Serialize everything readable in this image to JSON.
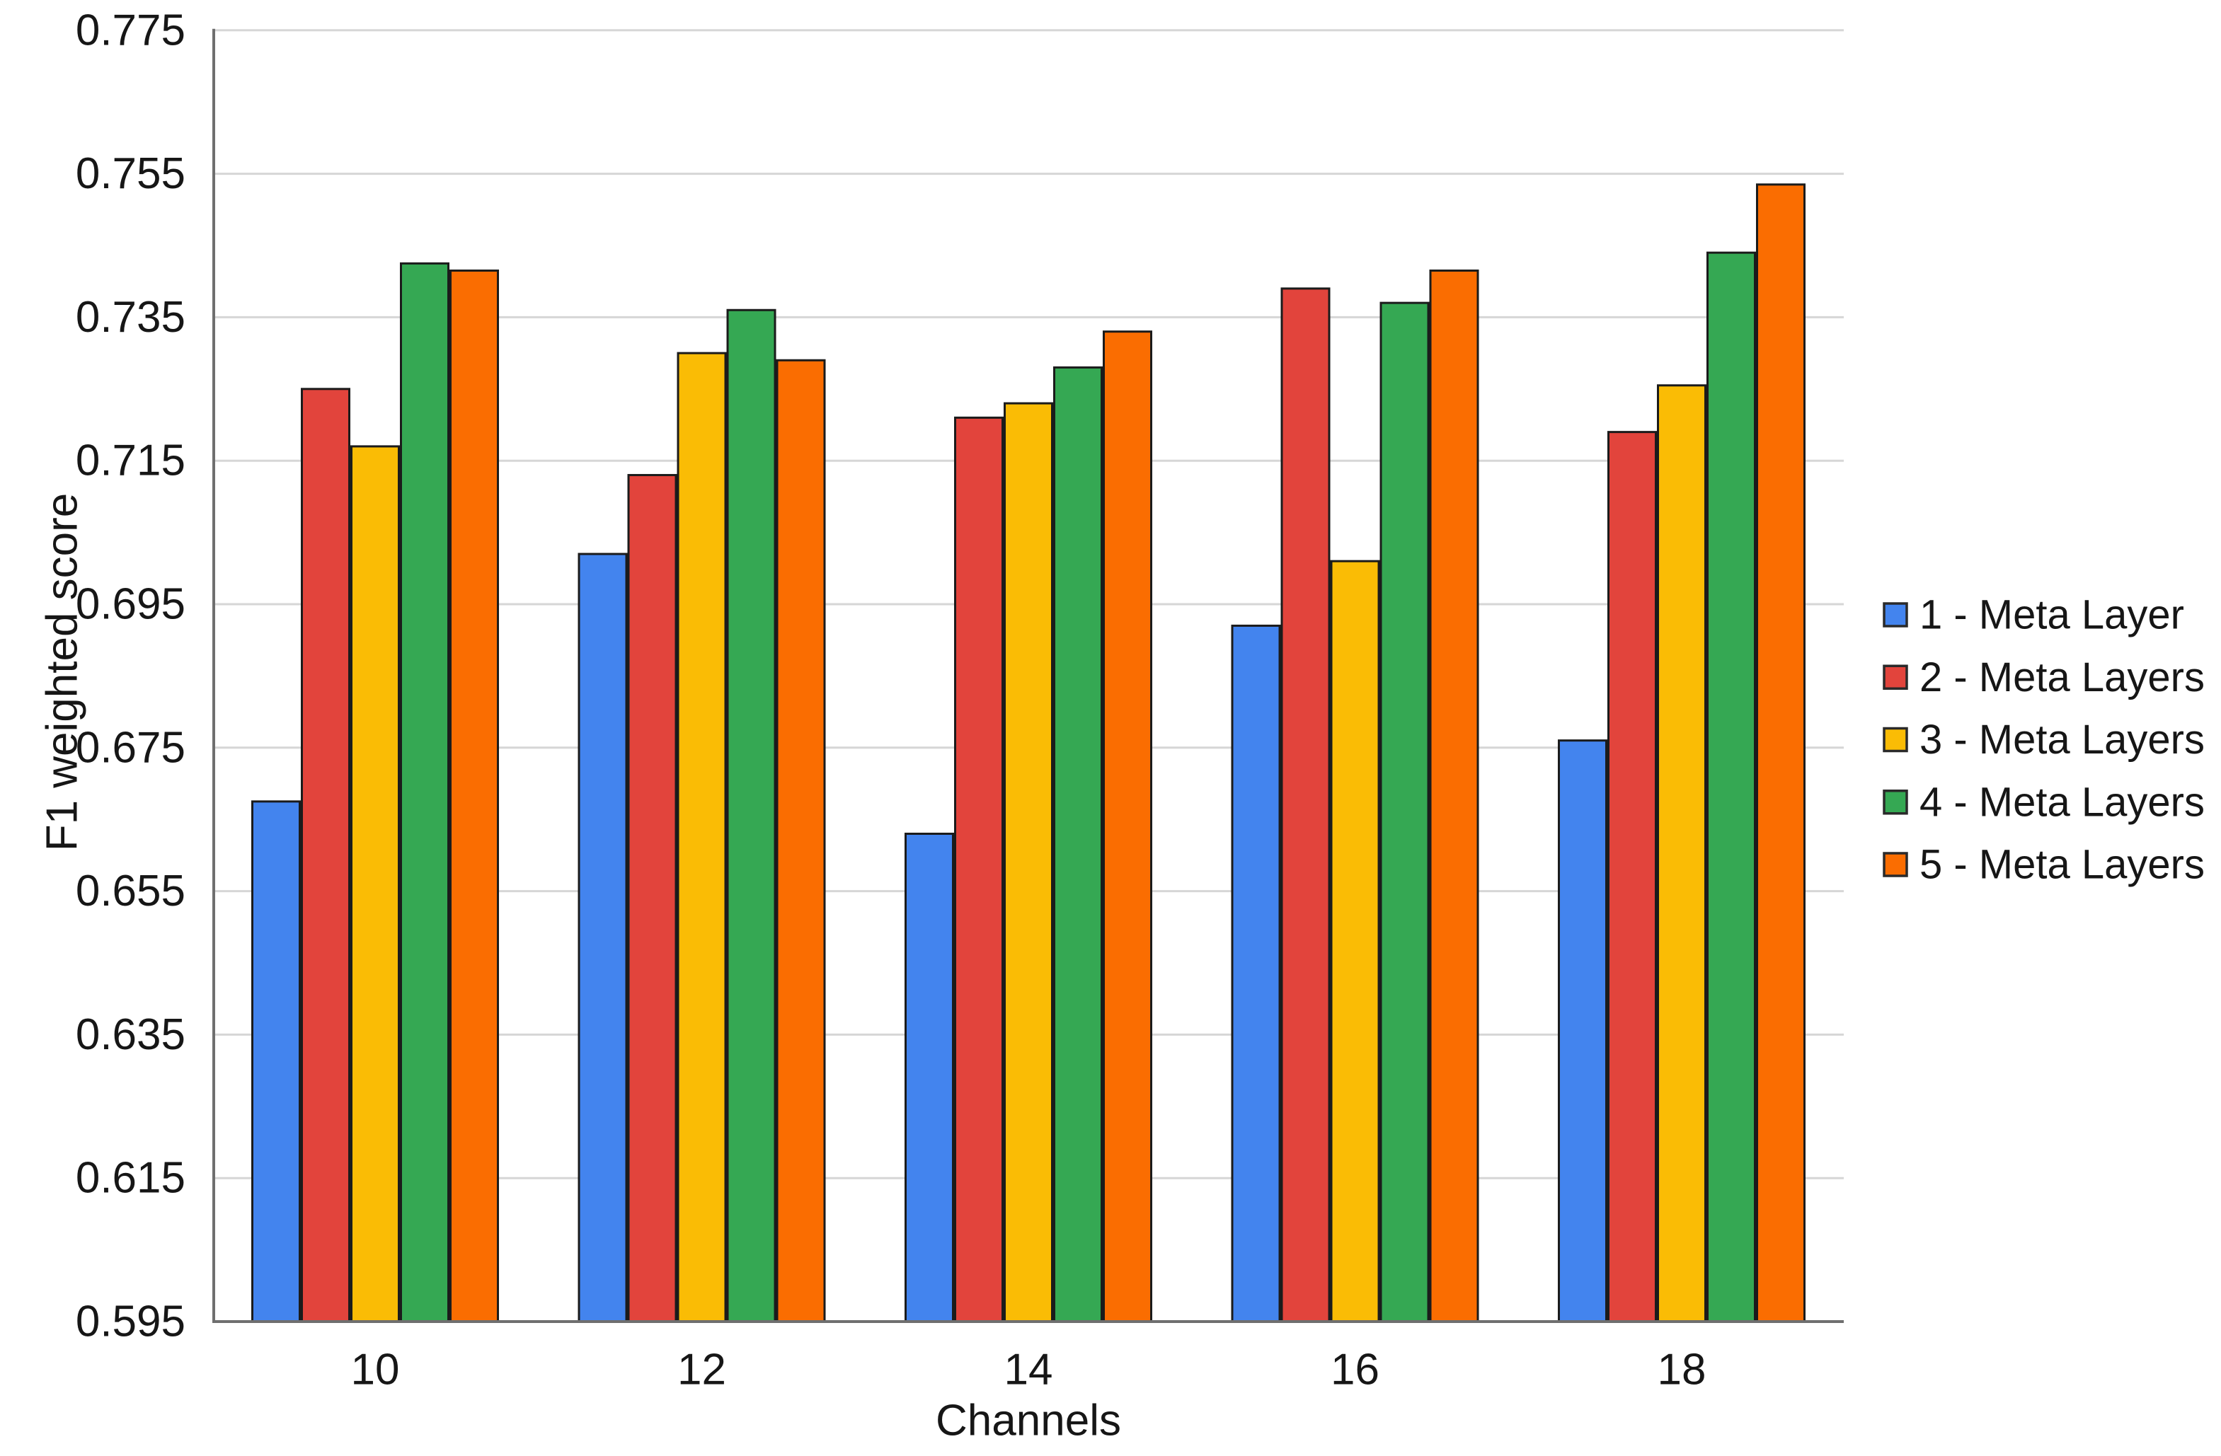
{
  "chart": {
    "y_axis_label": "F1 weighted score",
    "x_axis_label": "Channels",
    "y_ticks": [
      "0.775",
      "0.755",
      "0.735",
      "0.715",
      "0.695",
      "0.675",
      "0.655",
      "0.635",
      "0.615",
      "0.595"
    ],
    "x_ticks": [
      "10",
      "12",
      "14",
      "16",
      "18"
    ]
  },
  "legend": {
    "items": [
      {
        "label": "1 - Meta Layer",
        "color": "#4384EE",
        "icon": "legend-swatch-blue"
      },
      {
        "label": "2 - Meta Layers",
        "color": "#E2443C",
        "icon": "legend-swatch-red"
      },
      {
        "label": "3 - Meta Layers",
        "color": "#FABC05",
        "icon": "legend-swatch-yellow"
      },
      {
        "label": "4 - Meta Layers",
        "color": "#35A853",
        "icon": "legend-swatch-green"
      },
      {
        "label": "5 - Meta Layers",
        "color": "#FA6D01",
        "icon": "legend-swatch-orange"
      }
    ]
  },
  "chart_data": {
    "type": "bar",
    "title": "",
    "categories": [
      "10",
      "12",
      "14",
      "16",
      "18"
    ],
    "series": [
      {
        "name": "1 - Meta Layer",
        "color": "#4384EE",
        "values": [
          0.6675,
          0.702,
          0.663,
          0.692,
          0.676
        ]
      },
      {
        "name": "2 - Meta Layers",
        "color": "#E2443C",
        "values": [
          0.725,
          0.713,
          0.721,
          0.739,
          0.719
        ]
      },
      {
        "name": "3 - Meta Layers",
        "color": "#FABC05",
        "values": [
          0.717,
          0.73,
          0.723,
          0.701,
          0.7255
        ]
      },
      {
        "name": "4 - Meta Layers",
        "color": "#35A853",
        "values": [
          0.7425,
          0.736,
          0.728,
          0.737,
          0.744
        ]
      },
      {
        "name": "5 - Meta Layers",
        "color": "#FA6D01",
        "values": [
          0.7415,
          0.729,
          0.733,
          0.7415,
          0.7535
        ]
      }
    ],
    "xlabel": "Channels",
    "ylabel": "F1 weighted score",
    "ylim": [
      0.595,
      0.775
    ],
    "y_tick_step": 0.02,
    "bar_baseline": 0.595,
    "grid": true,
    "legend_position": "right-center"
  },
  "style": {
    "background": "#ffffff",
    "grid_color": "#d6d6d6",
    "axis_color": "#6f6f6f",
    "text_color": "#161616",
    "bar_border_color": "#1b1b1b",
    "legend_border_color": "#2a2a2a"
  }
}
